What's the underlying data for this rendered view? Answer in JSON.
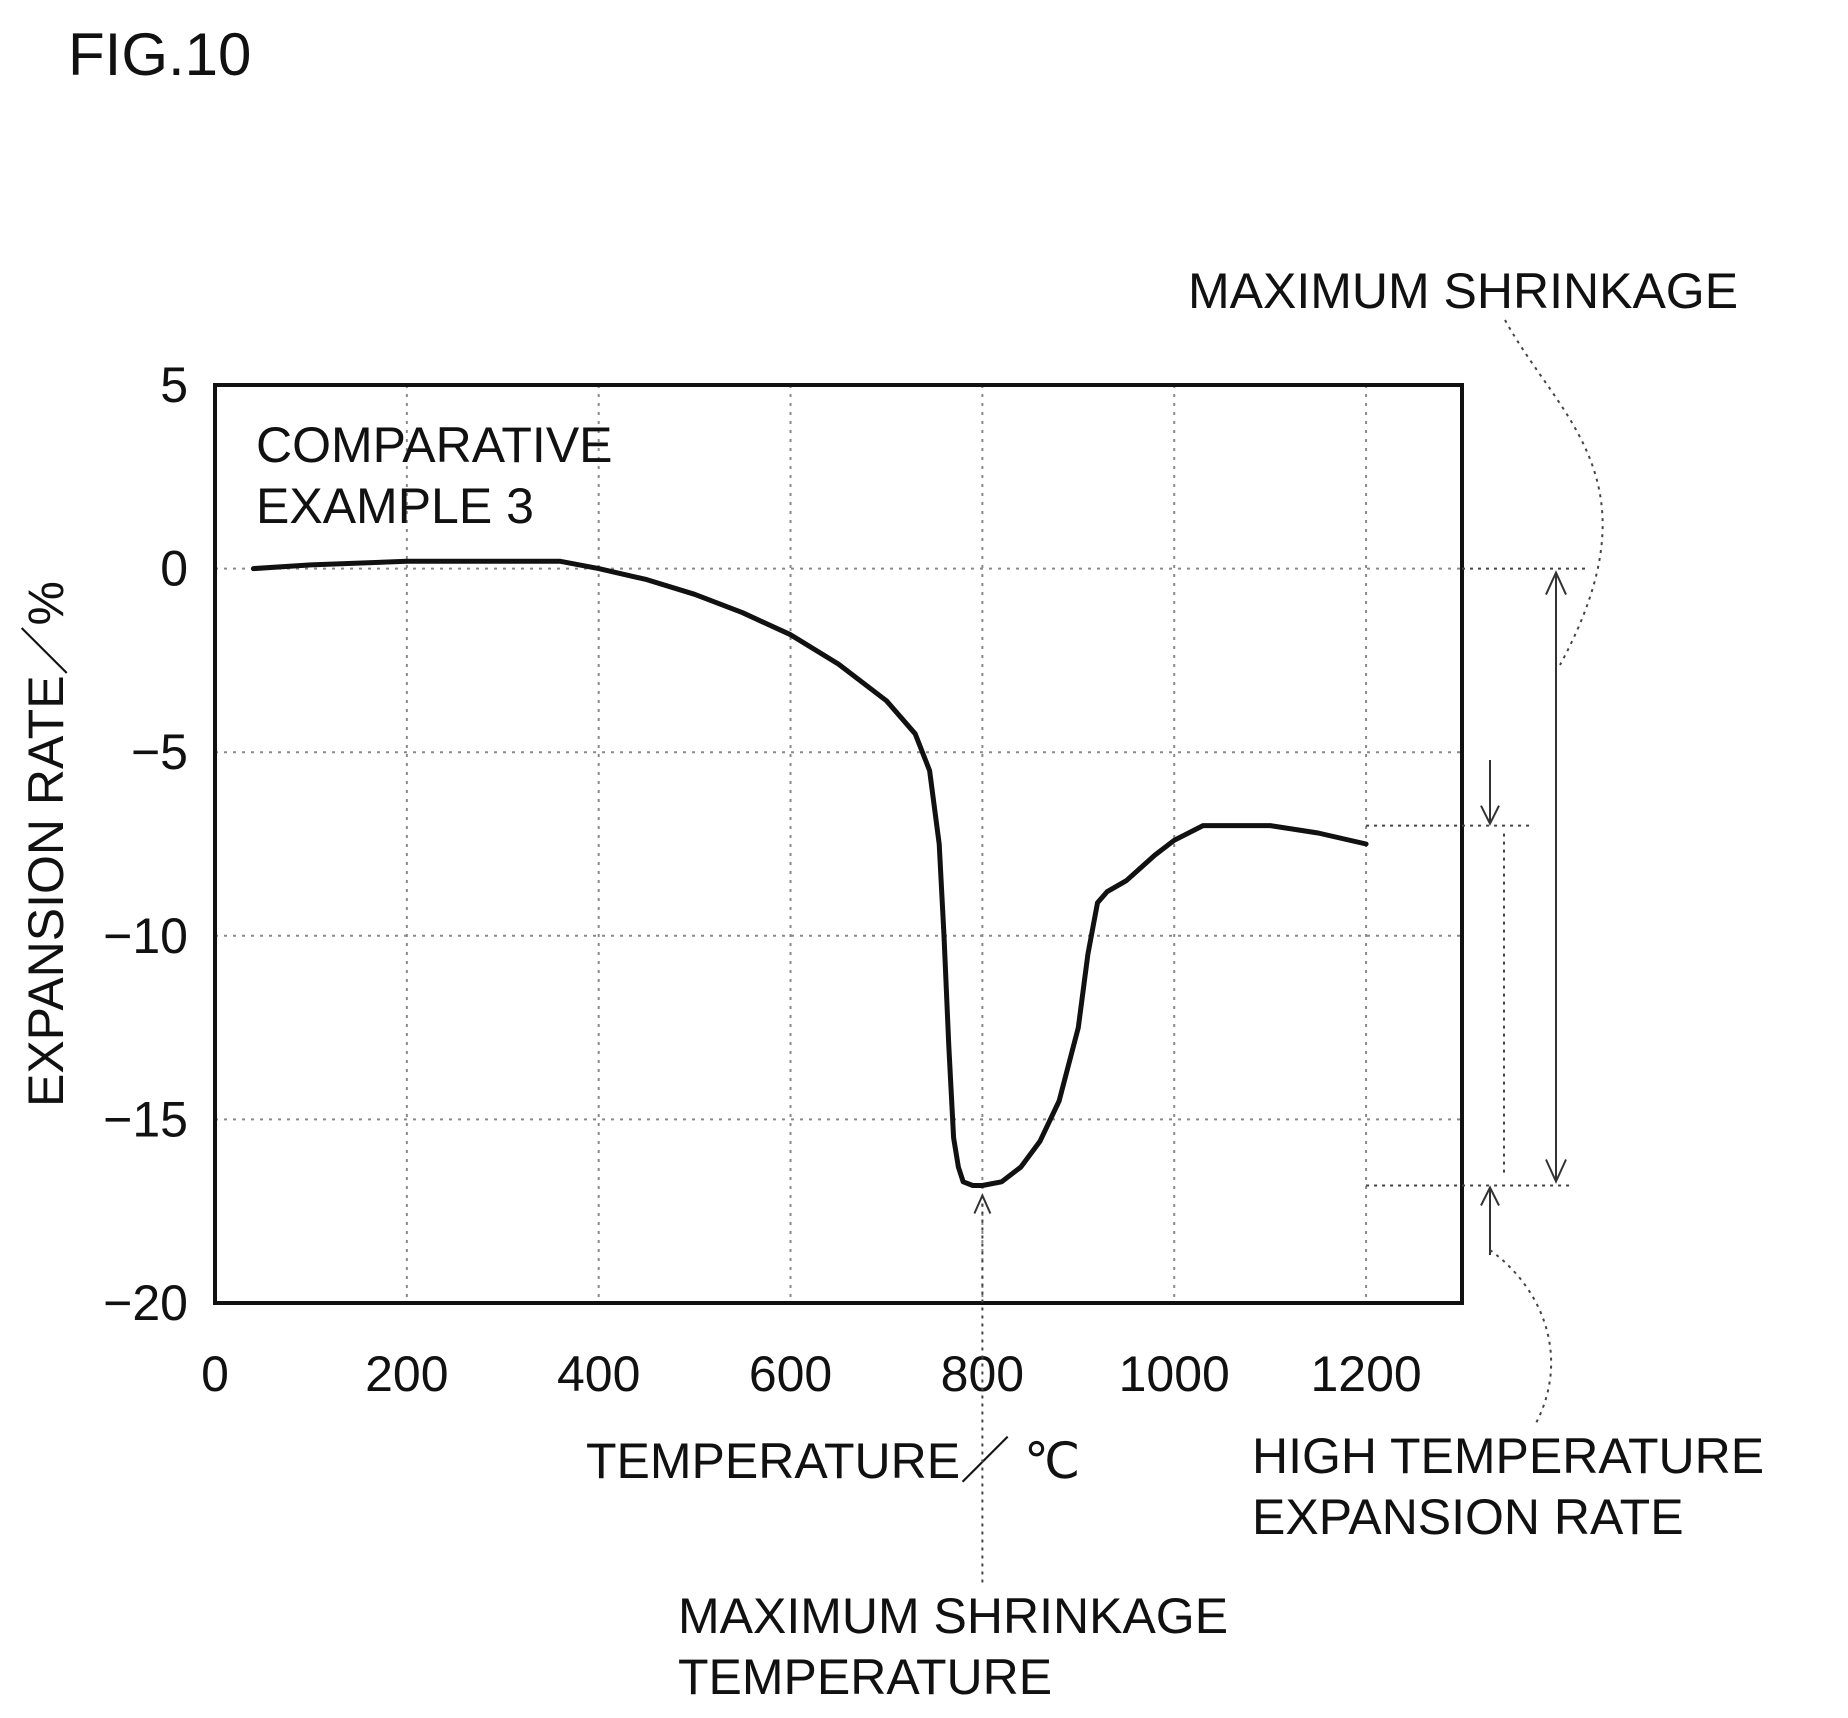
{
  "figure_label": "FIG.10",
  "chart_data": {
    "type": "line",
    "title": "",
    "legend_text": [
      "COMPARATIVE",
      "EXAMPLE 3"
    ],
    "xlabel": "TEMPERATURE／ ℃",
    "ylabel": "EXPANSION RATE／%",
    "xlim": [
      0,
      1300
    ],
    "ylim": [
      -20,
      5
    ],
    "x_ticks": [
      0,
      200,
      400,
      600,
      800,
      1000,
      1200
    ],
    "y_ticks": [
      5,
      0,
      -5,
      -10,
      -15,
      -20
    ],
    "x_tick_labels": [
      "0",
      "200",
      "400",
      "600",
      "800",
      "1000",
      "1200"
    ],
    "y_tick_labels": [
      "5",
      "0",
      "−5",
      "−10",
      "−15",
      "−20"
    ],
    "grid": true,
    "series": [
      {
        "x": [
          40,
          100,
          200,
          300,
          360,
          400,
          450,
          500,
          550,
          600,
          650,
          700,
          730,
          745,
          755,
          760,
          765,
          770,
          775,
          780,
          790,
          800,
          820,
          840,
          860,
          880,
          900,
          910,
          920,
          930,
          950,
          980,
          1000,
          1030,
          1050,
          1100,
          1150,
          1200
        ],
        "y": [
          0.0,
          0.1,
          0.2,
          0.2,
          0.2,
          0.0,
          -0.3,
          -0.7,
          -1.2,
          -1.8,
          -2.6,
          -3.6,
          -4.5,
          -5.5,
          -7.5,
          -10.0,
          -13.0,
          -15.5,
          -16.3,
          -16.7,
          -16.8,
          -16.8,
          -16.7,
          -16.3,
          -15.6,
          -14.5,
          -12.5,
          -10.5,
          -9.1,
          -8.8,
          -8.5,
          -7.8,
          -7.4,
          -7.0,
          -7.0,
          -7.0,
          -7.2,
          -7.5
        ]
      }
    ],
    "annotations": {
      "max_shrinkage_label": "MAXIMUM SHRINKAGE",
      "high_temp_rate_label": [
        "HIGH TEMPERATURE",
        "EXPANSION RATE"
      ],
      "max_shrinkage_temp_label": [
        "MAXIMUM SHRINKAGE",
        "TEMPERATURE"
      ],
      "min_value": -16.8,
      "min_temperature": 800,
      "final_value": -7.0
    }
  }
}
